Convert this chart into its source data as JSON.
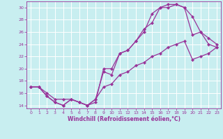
{
  "xlabel": "Windchill (Refroidissement éolien,°C)",
  "bg_color": "#c8eef0",
  "grid_color": "#ffffff",
  "line_color": "#993399",
  "marker": "D",
  "marker_size": 2.2,
  "line_width": 0.9,
  "xlim": [
    -0.5,
    23.5
  ],
  "ylim": [
    13.5,
    31.0
  ],
  "xticks": [
    0,
    1,
    2,
    3,
    4,
    5,
    6,
    7,
    8,
    9,
    10,
    11,
    12,
    13,
    14,
    15,
    16,
    17,
    18,
    19,
    20,
    21,
    22,
    23
  ],
  "yticks": [
    14,
    16,
    18,
    20,
    22,
    24,
    26,
    28,
    30
  ],
  "line1_x": [
    0,
    1,
    2,
    3,
    4,
    5,
    6,
    7,
    8,
    9,
    10,
    11,
    12,
    13,
    14,
    15,
    16,
    17,
    18,
    19,
    20,
    21,
    22,
    23
  ],
  "line1_y": [
    17,
    17,
    16,
    15,
    15,
    15,
    14.5,
    14,
    14.5,
    20,
    20,
    22.5,
    23,
    24.5,
    26.5,
    27.5,
    30,
    30.5,
    30.5,
    30,
    25.5,
    26,
    24,
    23.5
  ],
  "line2_x": [
    0,
    1,
    2,
    3,
    4,
    5,
    6,
    7,
    8,
    9,
    10,
    11,
    12,
    13,
    14,
    15,
    16,
    17,
    18,
    19,
    20,
    21,
    22,
    23
  ],
  "line2_y": [
    17,
    17,
    15.5,
    14.5,
    14,
    15,
    14.5,
    14,
    15,
    19.5,
    19,
    22.5,
    23,
    24.5,
    26,
    29,
    30,
    30,
    30.5,
    30,
    28.5,
    26,
    25,
    24
  ],
  "line3_x": [
    0,
    1,
    2,
    3,
    4,
    5,
    6,
    7,
    8,
    9,
    10,
    11,
    12,
    13,
    14,
    15,
    16,
    17,
    18,
    19,
    20,
    21,
    22,
    23
  ],
  "line3_y": [
    17,
    17,
    15.5,
    14.5,
    14,
    15,
    14.5,
    14,
    15,
    17,
    17.5,
    19,
    19.5,
    20.5,
    21,
    22,
    22.5,
    23.5,
    24,
    24.5,
    21.5,
    22,
    22.5,
    23.5
  ]
}
